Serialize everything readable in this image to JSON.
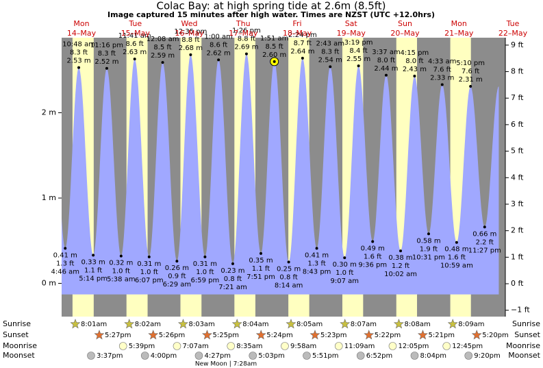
{
  "chart_data": {
    "type": "tide",
    "title": "Colac Bay: at high  spring tide at 2.6m (8.5ft)",
    "subtitle": "Image captured 15 minutes after high water. Times are NZST (UTC +12.0hrs)",
    "days": {
      "weekdays": [
        "Mon",
        "Tue",
        "Wed",
        "Thu",
        "Fri",
        "Sat",
        "Sun",
        "Mon",
        "Tue"
      ],
      "dates": [
        "14–May",
        "15–May",
        "16–May",
        "17–May",
        "18–May",
        "19–May",
        "20–May",
        "21–May",
        "22–May"
      ]
    },
    "ylim": [
      -0.39,
      2.88
    ],
    "yticks": [
      {
        "value": 0,
        "label": "0 m"
      },
      {
        "value": 1,
        "label": "1 m"
      },
      {
        "value": 2,
        "label": "2 m"
      }
    ],
    "y2lim": [
      -1.24,
      9.28
    ],
    "y2ticks": [
      {
        "value": -1,
        "label": "−1 ft"
      },
      {
        "value": 0,
        "label": "0 ft"
      },
      {
        "value": 1,
        "label": "1 ft"
      },
      {
        "value": 2,
        "label": "2 ft"
      },
      {
        "value": 3,
        "label": "3 ft"
      },
      {
        "value": 4,
        "label": "4 ft"
      },
      {
        "value": 5,
        "label": "5 ft"
      },
      {
        "value": 6,
        "label": "6 ft"
      },
      {
        "value": 7,
        "label": "7 ft"
      },
      {
        "value": 8,
        "label": "8 ft"
      },
      {
        "value": 9,
        "label": "9 ft"
      }
    ],
    "tides": {
      "color": "#a0a8ff",
      "dates": [
        "14–May",
        "14–May",
        "14–May",
        "14–May",
        "15–May",
        "15–May",
        "15–May",
        "16–May",
        "16–May",
        "16–May",
        "16–May",
        "17–May",
        "17–May",
        "17–May",
        "17–May",
        "18–May",
        "18–May",
        "18–May",
        "18–May",
        "19–May",
        "19–May",
        "19–May",
        "19–May",
        "20–May",
        "20–May",
        "20–May",
        "20–May",
        "21–May",
        "21–May",
        "21–May",
        "21–May"
      ],
      "times": [
        "4:46 am",
        "10:48 am",
        "5:14 pm",
        "11:16 pm",
        "5:38 am",
        "11:41 am",
        "6:07 pm",
        "12:08 am",
        "6:29 am",
        "12:35 pm",
        "6:59 pm",
        "1:00 am",
        "7:21 am",
        "1:26 pm",
        "7:51 pm",
        "1:51 am",
        "8:14 am",
        "2:24 pm",
        "8:43 pm",
        "2:43 am",
        "9:07 am",
        "3:19 pm",
        "9:36 pm",
        "3:37 am",
        "10:02 am",
        "4:15 pm",
        "10:31 pm",
        "4:33 am",
        "10:59 am",
        "5:10 pm",
        "11:27 pm"
      ],
      "values": [
        0.41,
        2.53,
        0.33,
        2.52,
        0.32,
        2.63,
        0.31,
        2.59,
        0.26,
        2.68,
        0.31,
        2.62,
        0.23,
        2.69,
        0.35,
        2.6,
        0.25,
        2.64,
        0.41,
        2.54,
        0.3,
        2.55,
        0.49,
        2.44,
        0.38,
        2.43,
        0.58,
        2.33,
        0.48,
        2.31,
        0.66
      ],
      "value_labels": [
        "0.41 m",
        "2.53 m",
        "0.33 m",
        "2.52 m",
        "0.32 m",
        "2.63 m",
        "0.31 m",
        "2.59 m",
        "0.26 m",
        "2.68 m",
        "0.31 m",
        "2.62 m",
        "0.23 m",
        "2.69 m",
        "0.35 m",
        "2.60 m",
        "0.25 m",
        "2.64 m",
        "0.41 m",
        "2.54 m",
        "0.30 m",
        "2.55 m",
        "0.49 m",
        "2.44 m",
        "0.38 m",
        "2.43 m",
        "0.58 m",
        "2.33 m",
        "0.48 m",
        "2.31 m",
        "0.66 m"
      ],
      "ft_labels": [
        "1.3 ft",
        "8.3 ft",
        "1.1 ft",
        "8.3 ft",
        "1.0 ft",
        "8.6 ft",
        "1.0 ft",
        "8.5 ft",
        "0.9 ft",
        "8.8 ft",
        "1.0 ft",
        "8.6 ft",
        "0.8 ft",
        "8.8 ft",
        "1.1 ft",
        "8.5 ft",
        "0.8 ft",
        "8.7 ft",
        "1.3 ft",
        "8.3 ft",
        "1.0 ft",
        "8.4 ft",
        "1.6 ft",
        "8.0 ft",
        "1.2 ft",
        "8.0 ft",
        "1.9 ft",
        "7.6 ft",
        "1.6 ft",
        "7.6 ft",
        "2.2 ft"
      ],
      "highlight": "1:51 am"
    },
    "sun_moon": [
      {
        "label": "Sunrise",
        "dates": [
          "14–May",
          "15–May",
          "16–May",
          "17–May",
          "18–May",
          "19–May",
          "20–May",
          "21–May"
        ],
        "times": [
          "8:01am",
          "8:02am",
          "8:03am",
          "8:04am",
          "8:05am",
          "8:07am",
          "8:08am",
          "8:09am"
        ]
      },
      {
        "label": "Sunset",
        "dates": [
          "14–May",
          "15–May",
          "16–May",
          "17–May",
          "18–May",
          "19–May",
          "20–May",
          "21–May"
        ],
        "times": [
          "5:27pm",
          "5:26pm",
          "5:25pm",
          "5:24pm",
          "5:23pm",
          "5:22pm",
          "5:21pm",
          "5:20pm"
        ]
      },
      {
        "label": "Moonrise",
        "dates": [
          "15–May",
          "16–May",
          "17–May",
          "18–May",
          "19–May",
          "20–May",
          "21–May"
        ],
        "times": [
          "5:39pm",
          "7:07am",
          "8:35am",
          "9:58am",
          "11:09am",
          "12:05pm",
          "12:45pm"
        ]
      },
      {
        "label": "Moonset",
        "dates": [
          "14–May",
          "15–May",
          "16–May",
          "17–May",
          "18–May",
          "19–May",
          "20–May",
          "21–May"
        ],
        "times": [
          "3:37pm",
          "4:00pm",
          "4:27pm",
          "5:03pm",
          "5:51pm",
          "6:52pm",
          "8:04pm",
          "9:20pm"
        ]
      }
    ],
    "moon_phase": "New Moon | 7:28am"
  }
}
